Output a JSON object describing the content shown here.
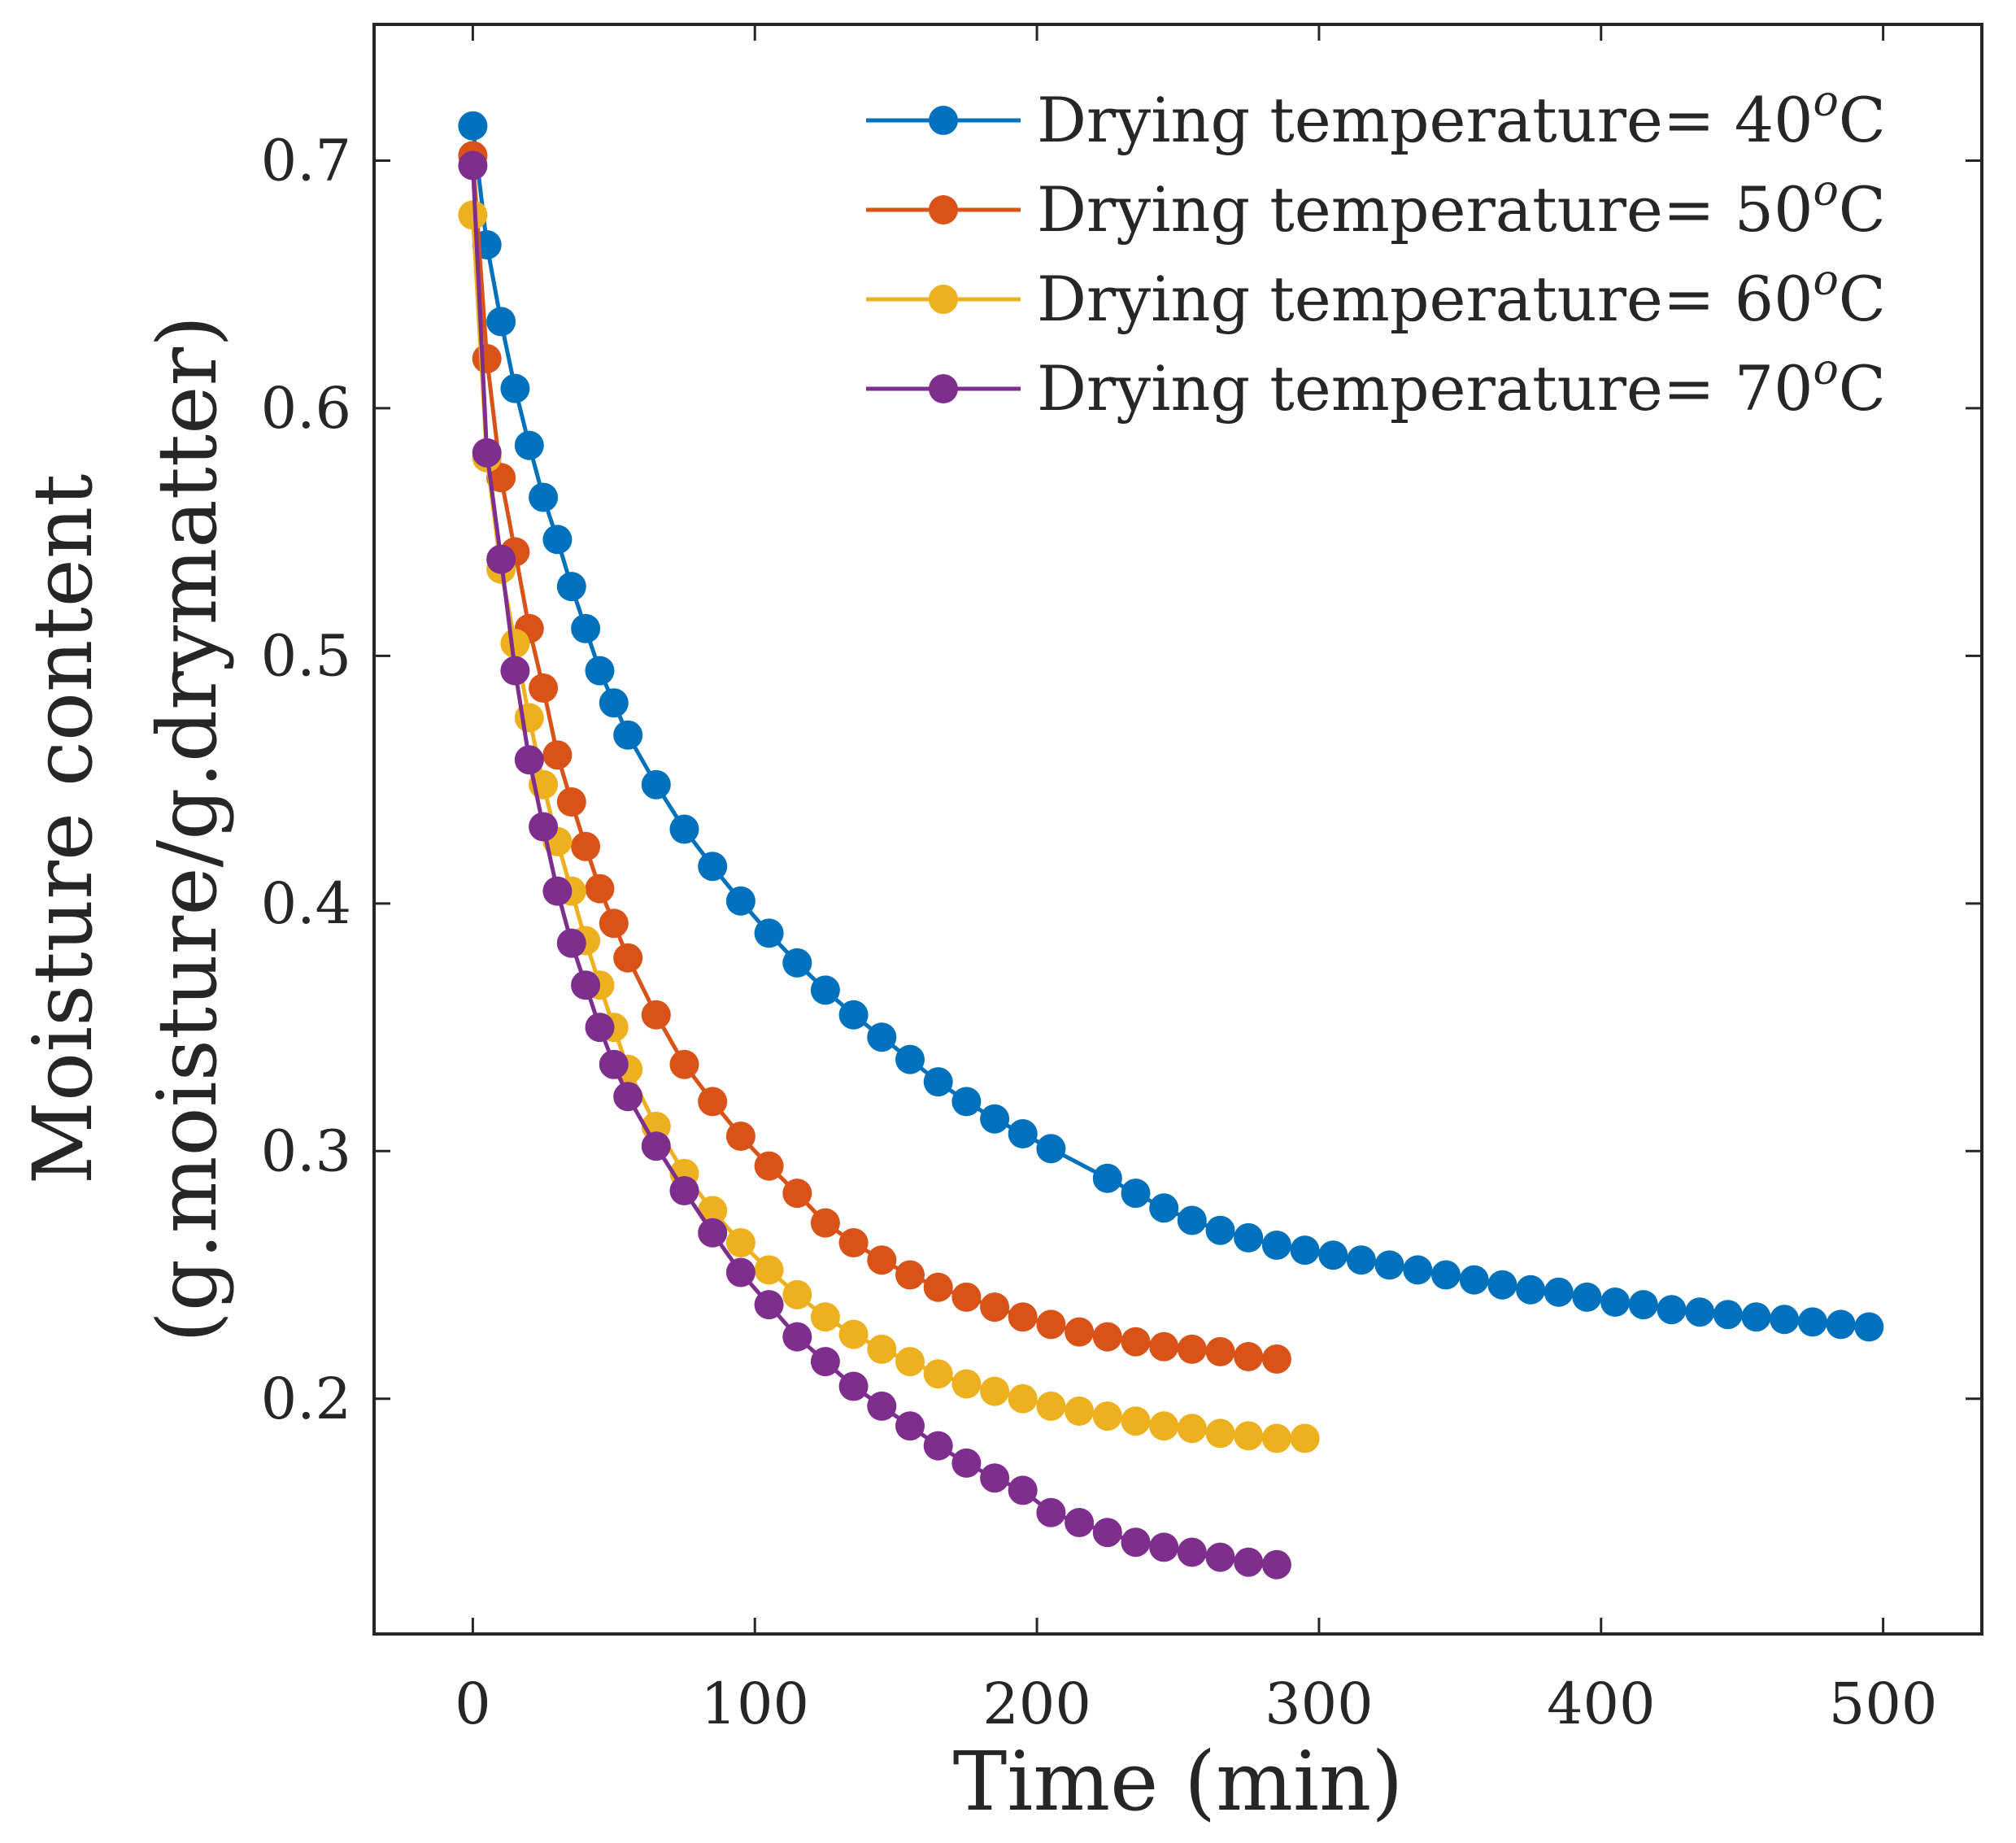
{
  "chart_data": {
    "type": "line",
    "title": "",
    "xlabel": "Time (min)",
    "ylabel": [
      "Moisture content",
      "(g.moisture/g.drymatter)"
    ],
    "xlim": [
      -35,
      535
    ],
    "ylim": [
      0.105,
      0.755
    ],
    "xticks": [
      0,
      100,
      200,
      300,
      400,
      500
    ],
    "xtick_labels": [
      "0",
      "100",
      "200",
      "300",
      "400",
      "500"
    ],
    "yticks": [
      0.2,
      0.3,
      0.4,
      0.5,
      0.6,
      0.7
    ],
    "ytick_labels": [
      "0.2",
      "0.3",
      "0.4",
      "0.5",
      "0.6",
      "0.7"
    ],
    "grid": false,
    "legend_position": "top-right",
    "series": [
      {
        "name": "Drying temperature= 40",
        "name_prefix": "Drying temperature= 40",
        "name_superscript": "o",
        "name_suffix": "C",
        "color": "#0072BD",
        "x": [
          0,
          5,
          10,
          15,
          20,
          25,
          30,
          35,
          40,
          45,
          50,
          55,
          65,
          75,
          85,
          95,
          105,
          115,
          125,
          135,
          145,
          155,
          165,
          175,
          185,
          195,
          205,
          225,
          235,
          245,
          255,
          265,
          275,
          285,
          295,
          305,
          315,
          325,
          335,
          345,
          355,
          365,
          375,
          385,
          395,
          405,
          415,
          425,
          435,
          445,
          455,
          465,
          475,
          485,
          495
        ],
        "y": [
          0.714,
          0.666,
          0.635,
          0.608,
          0.585,
          0.564,
          0.547,
          0.528,
          0.511,
          0.494,
          0.481,
          0.468,
          0.448,
          0.43,
          0.415,
          0.401,
          0.388,
          0.376,
          0.365,
          0.355,
          0.346,
          0.337,
          0.328,
          0.32,
          0.313,
          0.307,
          0.301,
          0.289,
          0.283,
          0.277,
          0.272,
          0.268,
          0.265,
          0.262,
          0.26,
          0.258,
          0.256,
          0.254,
          0.252,
          0.25,
          0.248,
          0.246,
          0.244,
          0.243,
          0.241,
          0.239,
          0.238,
          0.236,
          0.235,
          0.234,
          0.233,
          0.232,
          0.231,
          0.23,
          0.229
        ]
      },
      {
        "name": "Drying temperature= 50",
        "name_prefix": "Drying temperature= 50",
        "name_superscript": "o",
        "name_suffix": "C",
        "color": "#D95319",
        "x": [
          0,
          5,
          10,
          15,
          20,
          25,
          30,
          35,
          40,
          45,
          50,
          55,
          65,
          75,
          85,
          95,
          105,
          115,
          125,
          135,
          145,
          155,
          165,
          175,
          185,
          195,
          205,
          215,
          225,
          235,
          245,
          255,
          265,
          275,
          285
        ],
        "y": [
          0.702,
          0.62,
          0.572,
          0.542,
          0.511,
          0.487,
          0.46,
          0.441,
          0.423,
          0.406,
          0.392,
          0.378,
          0.355,
          0.335,
          0.32,
          0.306,
          0.294,
          0.283,
          0.271,
          0.263,
          0.256,
          0.25,
          0.245,
          0.241,
          0.237,
          0.233,
          0.23,
          0.227,
          0.225,
          0.223,
          0.221,
          0.22,
          0.219,
          0.217,
          0.216
        ]
      },
      {
        "name": "Drying temperature= 60",
        "name_prefix": "Drying temperature= 60",
        "name_superscript": "o",
        "name_suffix": "C",
        "color": "#EDB120",
        "x": [
          0,
          5,
          10,
          15,
          20,
          25,
          30,
          35,
          40,
          45,
          50,
          55,
          65,
          75,
          85,
          95,
          105,
          115,
          125,
          135,
          145,
          155,
          165,
          175,
          185,
          195,
          205,
          215,
          225,
          235,
          245,
          255,
          265,
          275,
          285,
          295
        ],
        "y": [
          0.678,
          0.58,
          0.535,
          0.505,
          0.475,
          0.448,
          0.425,
          0.405,
          0.385,
          0.367,
          0.35,
          0.333,
          0.31,
          0.291,
          0.276,
          0.263,
          0.252,
          0.242,
          0.233,
          0.226,
          0.22,
          0.215,
          0.21,
          0.206,
          0.203,
          0.2,
          0.197,
          0.195,
          0.193,
          0.191,
          0.189,
          0.188,
          0.186,
          0.185,
          0.184,
          0.184
        ]
      },
      {
        "name": "Drying temperature= 70",
        "name_prefix": "Drying temperature= 70",
        "name_superscript": "o",
        "name_suffix": "C",
        "color": "#7E2F8E",
        "x": [
          0,
          5,
          10,
          15,
          20,
          25,
          30,
          35,
          40,
          45,
          50,
          55,
          65,
          75,
          85,
          95,
          105,
          115,
          125,
          135,
          145,
          155,
          165,
          175,
          185,
          195,
          205,
          215,
          225,
          235,
          245,
          255,
          265,
          275,
          285
        ],
        "y": [
          0.698,
          0.582,
          0.539,
          0.494,
          0.458,
          0.431,
          0.405,
          0.384,
          0.367,
          0.35,
          0.335,
          0.322,
          0.302,
          0.284,
          0.267,
          0.251,
          0.238,
          0.225,
          0.215,
          0.205,
          0.197,
          0.189,
          0.181,
          0.174,
          0.168,
          0.163,
          0.154,
          0.15,
          0.146,
          0.142,
          0.14,
          0.138,
          0.136,
          0.134,
          0.133
        ]
      }
    ]
  }
}
